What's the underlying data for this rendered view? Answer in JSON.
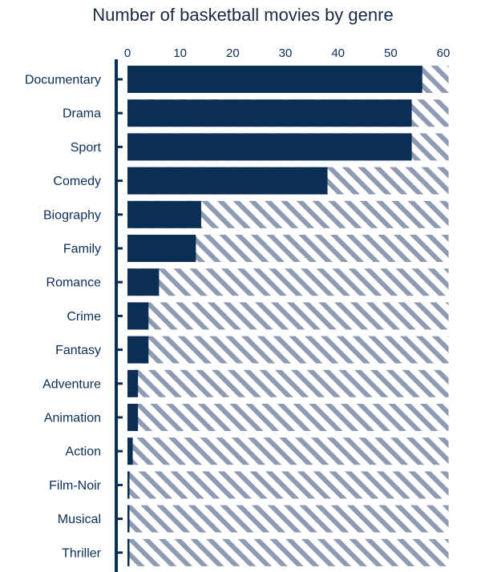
{
  "chart_data": {
    "type": "bar",
    "orientation": "horizontal",
    "title": "Number of basketball movies by genre",
    "xlabel": "",
    "ylabel": "",
    "xlim": [
      0,
      61
    ],
    "x_ticks": [
      0,
      10,
      20,
      30,
      40,
      50,
      60
    ],
    "grid": false,
    "categories": [
      "Documentary",
      "Drama",
      "Sport",
      "Comedy",
      "Biography",
      "Family",
      "Romance",
      "Crime",
      "Fantasy",
      "Adventure",
      "Animation",
      "Action",
      "Film-Noir",
      "Musical",
      "Thriller"
    ],
    "values": [
      56,
      54,
      54,
      38,
      14,
      13,
      6,
      4,
      4,
      2,
      2,
      1,
      0.3,
      0.3,
      0.3
    ],
    "background_max": 61
  },
  "colors": {
    "bar": "#0b2e55",
    "hatch": "#8e9bb3",
    "axis": "#0b2e55",
    "text": "#0b2e55",
    "title": "#1a2a40"
  }
}
